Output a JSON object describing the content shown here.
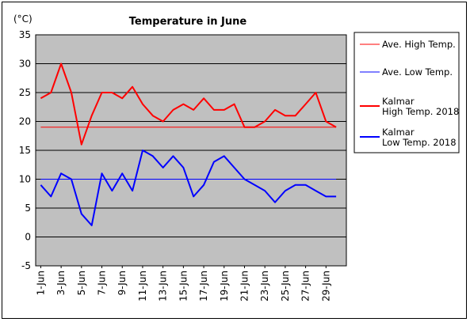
{
  "chart_data": {
    "type": "line",
    "title": "Temperature in June",
    "unit_label": "(°C)",
    "ylim": [
      -5,
      35
    ],
    "ytick_step": 5,
    "grid": "horizontal",
    "legend_position": "right",
    "x": [
      1,
      2,
      3,
      4,
      5,
      6,
      7,
      8,
      9,
      10,
      11,
      12,
      13,
      14,
      15,
      16,
      17,
      18,
      19,
      20,
      21,
      22,
      23,
      24,
      25,
      26,
      27,
      28,
      29,
      30
    ],
    "xtick_labels": [
      "1-Jun",
      "3-Jun",
      "5-Jun",
      "7-Jun",
      "9-Jun",
      "11-Jun",
      "13-Jun",
      "15-Jun",
      "17-Jun",
      "19-Jun",
      "21-Jun",
      "23-Jun",
      "25-Jun",
      "27-Jun",
      "29-Jun"
    ],
    "series": [
      {
        "name": "Ave. High Temp.",
        "color": "#ff0000",
        "stroke": "thin",
        "values": [
          19,
          19,
          19,
          19,
          19,
          19,
          19,
          19,
          19,
          19,
          19,
          19,
          19,
          19,
          19,
          19,
          19,
          19,
          19,
          19,
          19,
          19,
          19,
          19,
          19,
          19,
          19,
          19,
          19,
          19
        ]
      },
      {
        "name": "Ave. Low Temp.",
        "color": "#0000ff",
        "stroke": "thin",
        "values": [
          10,
          10,
          10,
          10,
          10,
          10,
          10,
          10,
          10,
          10,
          10,
          10,
          10,
          10,
          10,
          10,
          10,
          10,
          10,
          10,
          10,
          10,
          10,
          10,
          10,
          10,
          10,
          10,
          10,
          10
        ]
      },
      {
        "name": "Kalmar\nHigh Temp. 2018",
        "color": "#ff0000",
        "stroke": "thick",
        "values": [
          24,
          25,
          30,
          25,
          16,
          21,
          25,
          25,
          24,
          26,
          23,
          21,
          20,
          22,
          23,
          22,
          24,
          22,
          22,
          23,
          19,
          19,
          20,
          22,
          21,
          21,
          23,
          25,
          20,
          19
        ]
      },
      {
        "name": "Kalmar\nLow Temp. 2018",
        "color": "#0000ff",
        "stroke": "thick",
        "values": [
          9,
          7,
          11,
          10,
          4,
          2,
          11,
          8,
          11,
          8,
          15,
          14,
          12,
          14,
          12,
          7,
          9,
          13,
          14,
          12,
          10,
          9,
          8,
          6,
          8,
          9,
          9,
          8,
          7,
          7
        ]
      }
    ]
  }
}
